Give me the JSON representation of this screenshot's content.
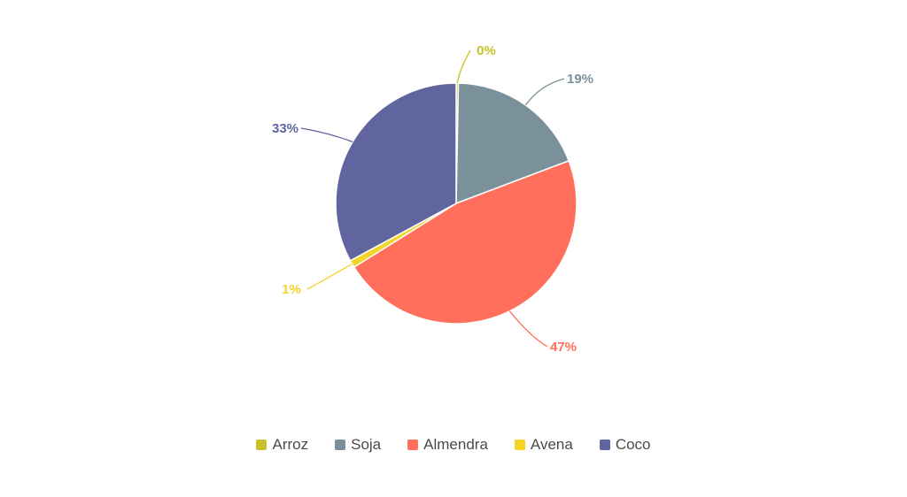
{
  "chart_data": {
    "type": "pie",
    "slices": [
      {
        "name": "Arroz",
        "value": 0.3,
        "label": "0%",
        "color": "#c8c32b"
      },
      {
        "name": "Soja",
        "value": 19,
        "label": "19%",
        "color": "#7a919b"
      },
      {
        "name": "Almendra",
        "value": 47,
        "label": "47%",
        "color": "#ff6f5b"
      },
      {
        "name": "Avena",
        "value": 1,
        "label": "1%",
        "color": "#f5d327"
      },
      {
        "name": "Coco",
        "value": 33,
        "label": "33%",
        "color": "#6065a0"
      }
    ],
    "start_angle_deg": 0,
    "direction": "clockwise",
    "legend_position": "bottom"
  }
}
